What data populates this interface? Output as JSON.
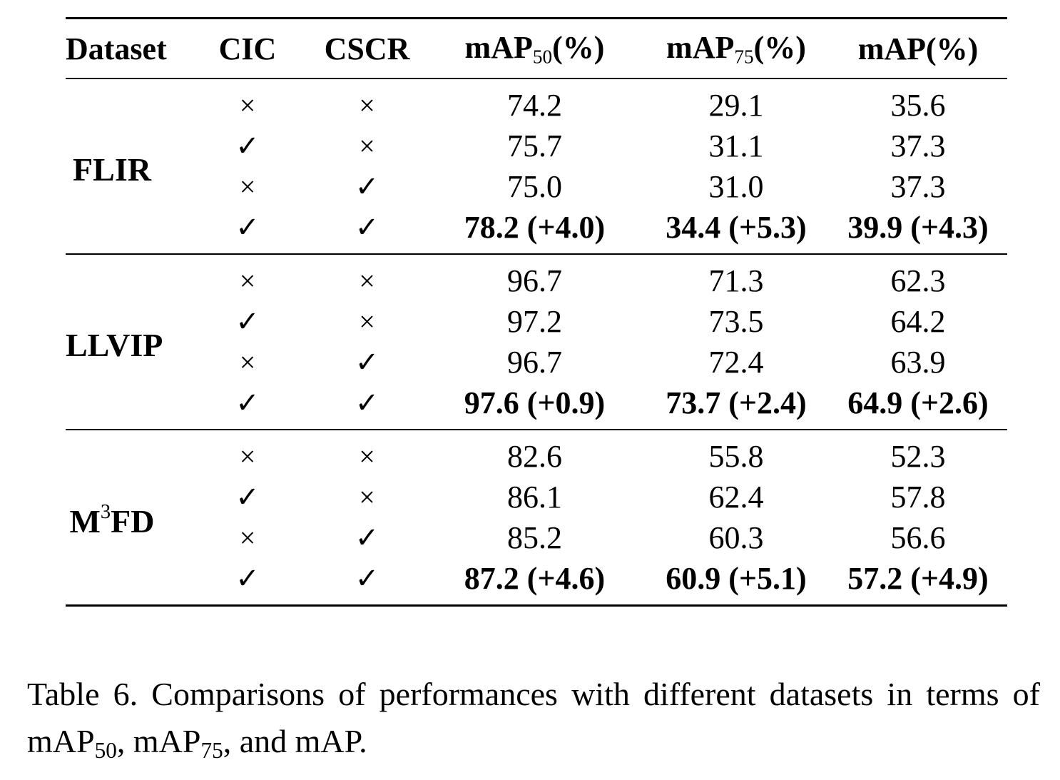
{
  "table": {
    "headers": {
      "dataset": "Dataset",
      "cic": "CIC",
      "cscr": "CSCR",
      "map50_main": "mAP",
      "map50_sub": "50",
      "map50_unit": "(%)",
      "map75_main": "mAP",
      "map75_sub": "75",
      "map75_unit": "(%)",
      "map": "mAP(%)"
    },
    "groups": [
      {
        "dataset": "FLIR",
        "rows": [
          {
            "cic": "×",
            "cscr": "×",
            "map50": "74.2",
            "map75": "29.1",
            "map": "35.6"
          },
          {
            "cic": "✓",
            "cscr": "×",
            "map50": "75.7",
            "map75": "31.1",
            "map": "37.3"
          },
          {
            "cic": "×",
            "cscr": "✓",
            "map50": "75.0",
            "map75": "31.0",
            "map": "37.3"
          },
          {
            "cic": "✓",
            "cscr": "✓",
            "map50": "78.2 (+4.0)",
            "map75": "34.4 (+5.3)",
            "map": "39.9 (+4.3)"
          }
        ]
      },
      {
        "dataset": "LLVIP",
        "rows": [
          {
            "cic": "×",
            "cscr": "×",
            "map50": "96.7",
            "map75": "71.3",
            "map": "62.3"
          },
          {
            "cic": "✓",
            "cscr": "×",
            "map50": "97.2",
            "map75": "73.5",
            "map": "64.2"
          },
          {
            "cic": "×",
            "cscr": "✓",
            "map50": "96.7",
            "map75": "72.4",
            "map": "63.9"
          },
          {
            "cic": "✓",
            "cscr": "✓",
            "map50": "97.6 (+0.9)",
            "map75": "73.7 (+2.4)",
            "map": "64.9 (+2.6)"
          }
        ]
      },
      {
        "dataset_main": "M",
        "dataset_sup": "3",
        "dataset_rest": "FD",
        "rows": [
          {
            "cic": "×",
            "cscr": "×",
            "map50": "82.6",
            "map75": "55.8",
            "map": "52.3"
          },
          {
            "cic": "✓",
            "cscr": "×",
            "map50": "86.1",
            "map75": "62.4",
            "map": "57.8"
          },
          {
            "cic": "×",
            "cscr": "✓",
            "map50": "85.2",
            "map75": "60.3",
            "map": "56.6"
          },
          {
            "cic": "✓",
            "cscr": "✓",
            "map50": "87.2 (+4.6)",
            "map75": "60.9 (+5.1)",
            "map": "57.2 (+4.9)"
          }
        ]
      }
    ]
  },
  "caption": {
    "part1": "Table 6.  Comparisons of performances with different datasets in terms of mAP",
    "sub1": "50",
    "part2": ", mAP",
    "sub2": "75",
    "part3": ", and mAP."
  }
}
